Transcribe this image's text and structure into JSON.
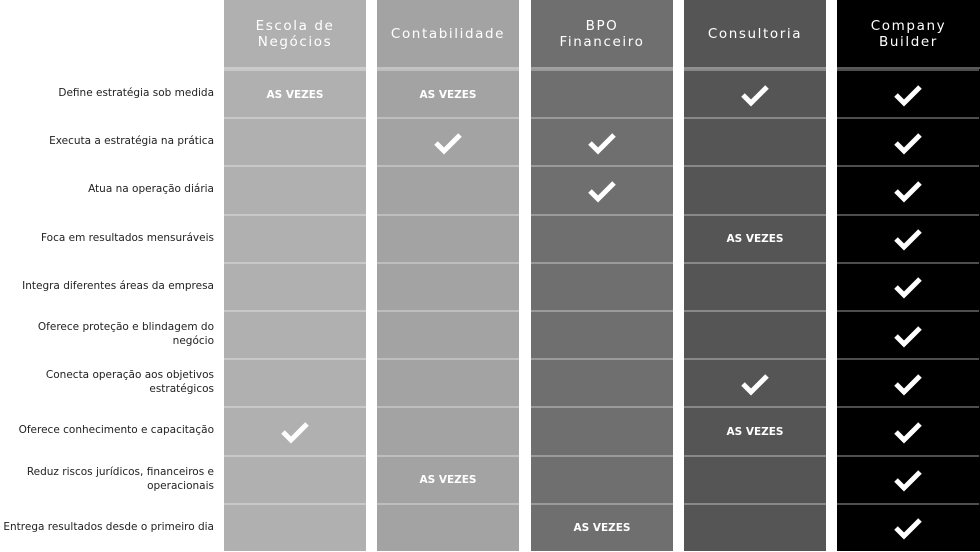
{
  "columns": [
    {
      "title": "Escola de Negócios",
      "color": "#b0b0b0"
    },
    {
      "title": "Contabilidade",
      "color": "#a3a3a3"
    },
    {
      "title": "BPO Financeiro",
      "color": "#6f6f6f"
    },
    {
      "title": "Consultoria",
      "color": "#555555"
    },
    {
      "title": "Company Builder",
      "color": "#000000"
    }
  ],
  "sometimes_label": "AS VEZES",
  "rows": [
    {
      "label": "Define estratégia sob medida",
      "values": [
        "sometimes",
        "sometimes",
        "none",
        "check",
        "check"
      ]
    },
    {
      "label": "Executa a estratégia na prática",
      "values": [
        "none",
        "check",
        "check",
        "none",
        "check"
      ]
    },
    {
      "label": "Atua na operação diária",
      "values": [
        "none",
        "none",
        "check",
        "none",
        "check"
      ]
    },
    {
      "label": "Foca em resultados mensuráveis",
      "values": [
        "none",
        "none",
        "none",
        "sometimes",
        "check"
      ]
    },
    {
      "label": "Integra diferentes áreas da empresa",
      "values": [
        "none",
        "none",
        "none",
        "none",
        "check"
      ]
    },
    {
      "label": "Oferece proteção e blindagem do negócio",
      "values": [
        "none",
        "none",
        "none",
        "none",
        "check"
      ]
    },
    {
      "label": "Conecta operação aos objetivos estratégicos",
      "values": [
        "none",
        "none",
        "none",
        "check",
        "check"
      ]
    },
    {
      "label": "Oferece conhecimento e capacitação",
      "values": [
        "check",
        "none",
        "none",
        "sometimes",
        "check"
      ]
    },
    {
      "label": "Reduz riscos jurídicos, financeiros e operacionais",
      "values": [
        "none",
        "sometimes",
        "none",
        "none",
        "check"
      ]
    },
    {
      "label": "Entrega resultados desde o primeiro dia",
      "values": [
        "none",
        "none",
        "sometimes",
        "none",
        "check"
      ]
    }
  ]
}
